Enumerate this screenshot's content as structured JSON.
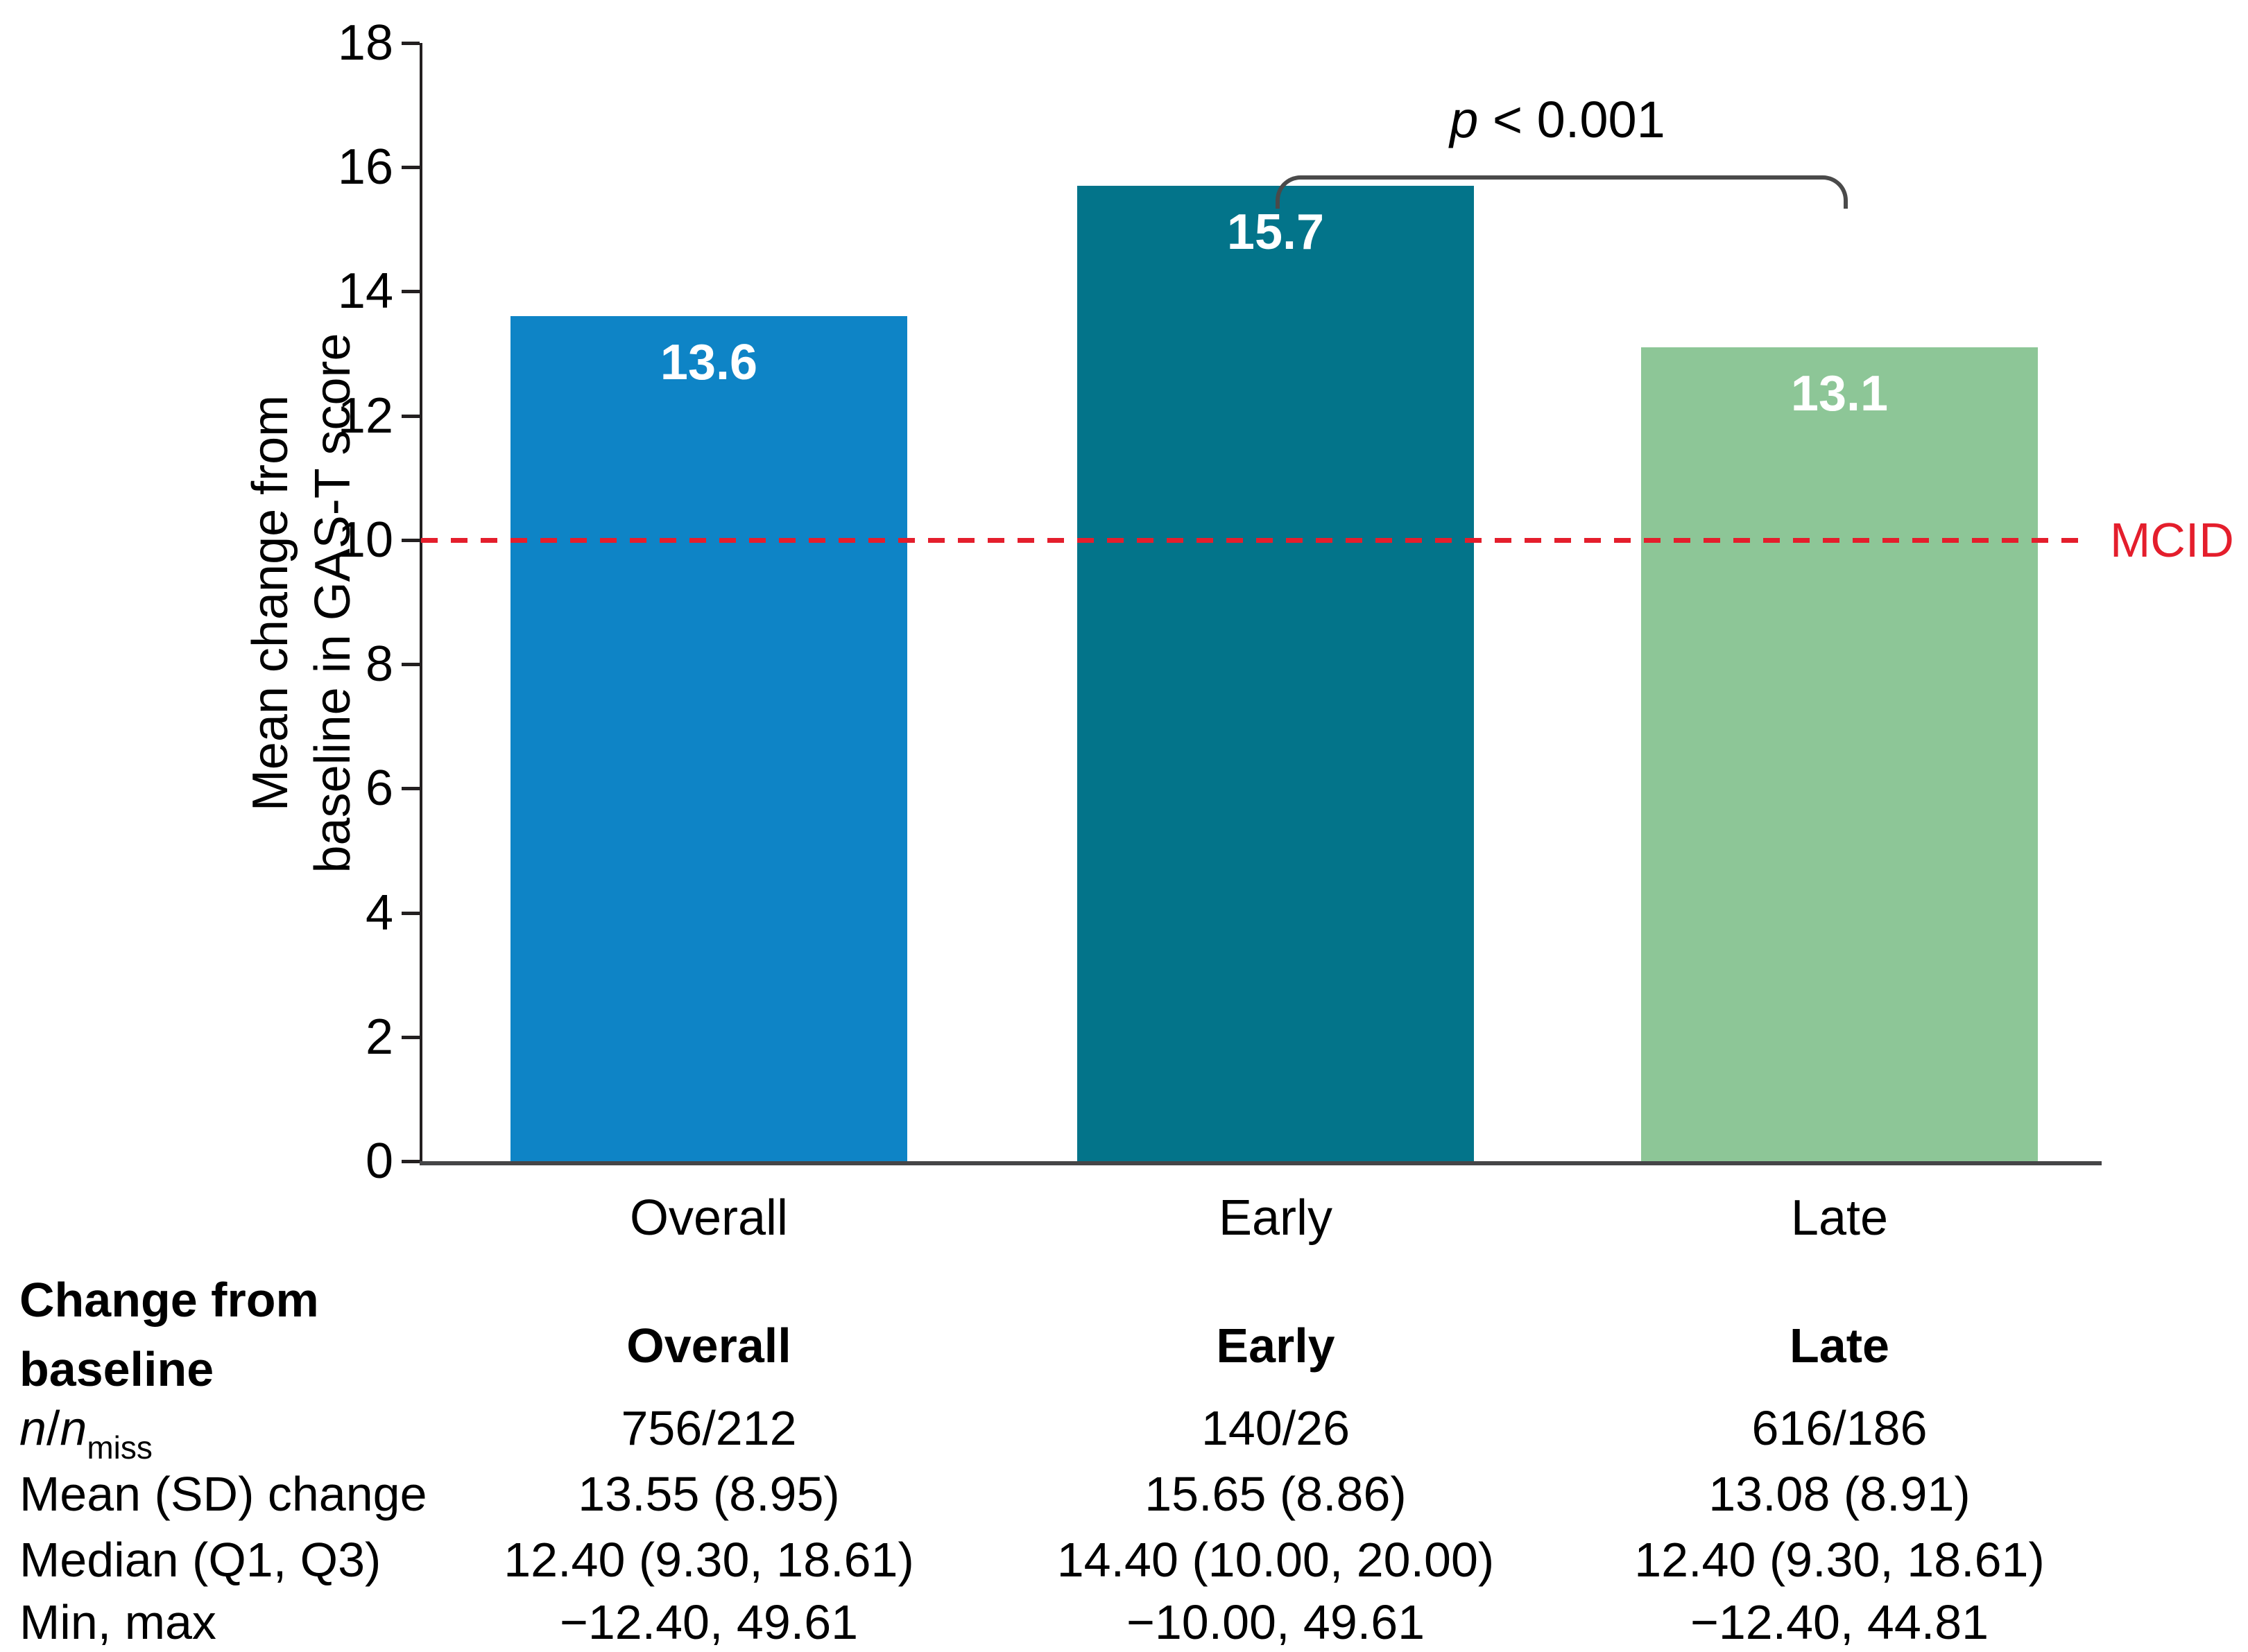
{
  "figure": {
    "y_axis_label_line1": "Mean change from",
    "y_axis_label_line2": "baseline in GAS-T score",
    "p_annotation": {
      "p": "p",
      "rest": " < 0.001"
    },
    "mcid": {
      "label": "MCID",
      "value": 10,
      "color": "#e41e2c"
    }
  },
  "chart_data": {
    "type": "bar",
    "title": "",
    "categories": [
      "Overall",
      "Early",
      "Late"
    ],
    "values": [
      13.6,
      15.7,
      13.1
    ],
    "value_labels": [
      "13.6",
      "15.7",
      "13.1"
    ],
    "bar_colors": [
      "#0e84c6",
      "#03748a",
      "#8dc697"
    ],
    "xlabel": "",
    "ylabel": "Mean change from baseline in GAS-T score",
    "ylim": [
      0,
      18
    ],
    "y_ticks": [
      0,
      2,
      4,
      6,
      8,
      10,
      12,
      14,
      16,
      18
    ],
    "grid": false,
    "reference_line": {
      "label": "MCID",
      "value": 10,
      "color": "#e41e2c",
      "style": "dashed"
    },
    "significance": {
      "from": "Early",
      "to": "Late",
      "label": "p < 0.001"
    }
  },
  "table": {
    "row_header_line1": "Change from",
    "row_header_line2": "baseline",
    "column_headers": [
      "Overall",
      "Early",
      "Late"
    ],
    "nmiss_row": {
      "n1": "n",
      "slash": "/",
      "n2": "n",
      "sub": "miss",
      "values": [
        "756/212",
        "140/26",
        "616/186"
      ]
    },
    "rows": [
      {
        "label": "Mean (SD) change",
        "values": [
          "13.55 (8.95)",
          "15.65 (8.86)",
          "13.08 (8.91)"
        ]
      },
      {
        "label": "Median (Q1, Q3)",
        "values": [
          "12.40 (9.30, 18.61)",
          "14.40 (10.00, 20.00)",
          "12.40 (9.30, 18.61)"
        ]
      },
      {
        "label": "Min, max",
        "values": [
          "−12.40, 49.61",
          "−10.00, 49.61",
          "−12.40, 44.81"
        ]
      }
    ]
  }
}
